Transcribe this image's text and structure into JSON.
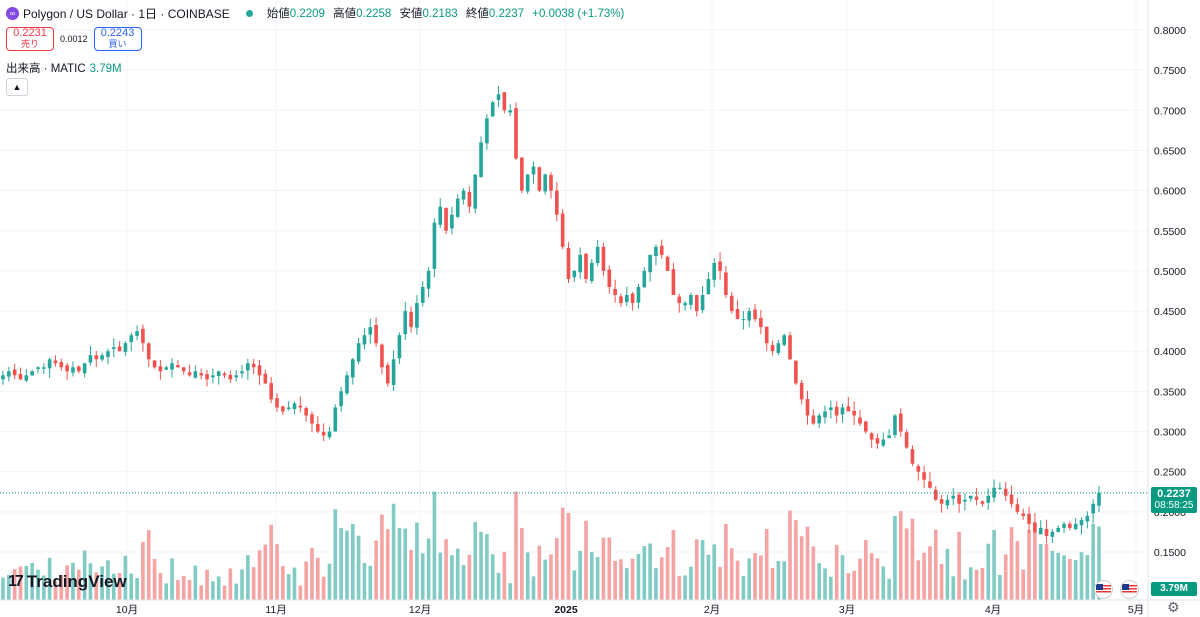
{
  "header": {
    "icon_label": "∞",
    "title": "Polygon / US Dollar · 1日 · COINBASE",
    "open_label": "始値",
    "open": "0.2209",
    "high_label": "高値",
    "high": "0.2258",
    "low_label": "安値",
    "low": "0.2183",
    "close_label": "終値",
    "close": "0.2237",
    "change": "+0.0038 (+1.73%)"
  },
  "trade": {
    "sell_price": "0.2231",
    "sell_label": "売り",
    "spread": "0.0012",
    "buy_price": "0.2243",
    "buy_label": "買い"
  },
  "volume_legend": {
    "label": "出来高 · MATIC",
    "value": "3.79M"
  },
  "collapse_icon": "chevron-up-icon",
  "price_axis": {
    "ticks": [
      "0.8000",
      "0.7500",
      "0.7000",
      "0.6500",
      "0.6000",
      "0.5500",
      "0.5000",
      "0.4500",
      "0.4000",
      "0.3500",
      "0.3000",
      "0.2500",
      "0.2000",
      "0.1500"
    ],
    "last_price_tag": "0.2237",
    "countdown": "08:58:25",
    "volume_tag": "3.79M"
  },
  "time_axis": {
    "labels": [
      "10月",
      "11月",
      "12月",
      "2025",
      "2月",
      "3月",
      "4月",
      "5月"
    ]
  },
  "logo": {
    "mark": "17",
    "text": "TradingView"
  },
  "colors": {
    "up": "#26a69a",
    "down": "#ef5350",
    "up_vol": "#80cbc4",
    "down_vol": "#f5a3a3",
    "grid": "#f0f3fa"
  },
  "chart_data": {
    "type": "candlestick",
    "symbol": "Polygon / US Dollar",
    "interval": "1日",
    "exchange": "COINBASE",
    "y_range": [
      0.13,
      0.8125
    ],
    "x_range_months": [
      "10月",
      "11月",
      "12月",
      "2025",
      "2月",
      "3月",
      "4月",
      "5月"
    ],
    "last_price": 0.2237,
    "path_close": [
      0.37,
      0.375,
      0.37,
      0.365,
      0.37,
      0.375,
      0.38,
      0.38,
      0.39,
      0.385,
      0.38,
      0.375,
      0.38,
      0.375,
      0.385,
      0.395,
      0.39,
      0.395,
      0.4,
      0.405,
      0.4,
      0.41,
      0.42,
      0.425,
      0.41,
      0.39,
      0.38,
      0.375,
      0.38,
      0.385,
      0.38,
      0.375,
      0.37,
      0.375,
      0.37,
      0.365,
      0.37,
      0.375,
      0.37,
      0.365,
      0.37,
      0.375,
      0.385,
      0.38,
      0.37,
      0.36,
      0.34,
      0.33,
      0.325,
      0.33,
      0.335,
      0.33,
      0.32,
      0.31,
      0.3,
      0.295,
      0.3,
      0.33,
      0.35,
      0.37,
      0.39,
      0.41,
      0.42,
      0.43,
      0.41,
      0.38,
      0.36,
      0.39,
      0.42,
      0.45,
      0.43,
      0.46,
      0.48,
      0.5,
      0.56,
      0.58,
      0.55,
      0.57,
      0.59,
      0.6,
      0.58,
      0.62,
      0.66,
      0.69,
      0.71,
      0.72,
      0.7,
      0.7,
      0.64,
      0.6,
      0.62,
      0.63,
      0.6,
      0.62,
      0.6,
      0.57,
      0.53,
      0.49,
      0.5,
      0.52,
      0.49,
      0.51,
      0.53,
      0.5,
      0.48,
      0.47,
      0.46,
      0.47,
      0.46,
      0.48,
      0.5,
      0.52,
      0.53,
      0.52,
      0.5,
      0.47,
      0.46,
      0.46,
      0.47,
      0.45,
      0.47,
      0.49,
      0.51,
      0.5,
      0.47,
      0.45,
      0.44,
      0.44,
      0.45,
      0.44,
      0.43,
      0.41,
      0.4,
      0.41,
      0.42,
      0.39,
      0.36,
      0.34,
      0.32,
      0.31,
      0.32,
      0.325,
      0.33,
      0.32,
      0.33,
      0.325,
      0.32,
      0.31,
      0.3,
      0.29,
      0.285,
      0.29,
      0.295,
      0.32,
      0.3,
      0.28,
      0.26,
      0.25,
      0.24,
      0.23,
      0.215,
      0.21,
      0.215,
      0.22,
      0.21,
      0.215,
      0.22,
      0.215,
      0.21,
      0.22,
      0.23,
      0.23,
      0.22,
      0.21,
      0.2,
      0.195,
      0.185,
      0.175,
      0.18,
      0.17,
      0.175,
      0.18,
      0.185,
      0.18,
      0.185,
      0.19,
      0.195,
      0.21,
      0.2237
    ]
  }
}
